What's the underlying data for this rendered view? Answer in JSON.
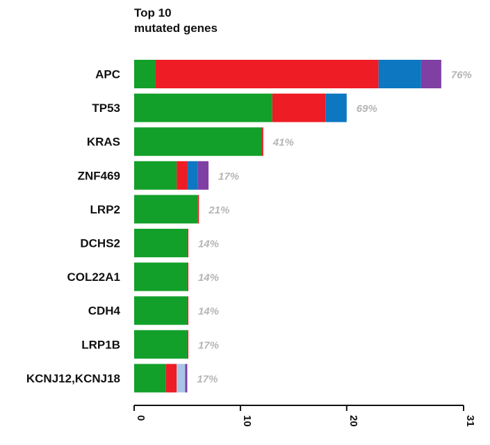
{
  "chart_data": {
    "type": "bar",
    "orientation": "horizontal",
    "stacked": true,
    "title": [
      "Top 10",
      "mutated genes"
    ],
    "categories": [
      "APC",
      "TP53",
      "KRAS",
      "ZNF469",
      "LRP2",
      "DCHS2",
      "COL22A1",
      "CDH4",
      "LRP1B",
      "KCNJ12,KCNJ18"
    ],
    "percent_labels": [
      "76%",
      "69%",
      "41%",
      "17%",
      "21%",
      "14%",
      "14%",
      "14%",
      "17%",
      "17%"
    ],
    "series": [
      {
        "color": "#12a02a",
        "values": [
          2,
          13,
          12,
          4,
          6,
          5,
          5,
          5,
          5,
          3
        ]
      },
      {
        "color": "#ee1c24",
        "values": [
          21,
          5,
          0.15,
          1,
          0.1,
          0.1,
          0.1,
          0.1,
          0.1,
          1
        ]
      },
      {
        "color": "#0d77c2",
        "values": [
          4,
          2,
          0,
          1,
          0,
          0,
          0,
          0,
          0,
          0
        ]
      },
      {
        "color": "#a7c6e6",
        "values": [
          0,
          0,
          0,
          0,
          0,
          0,
          0,
          0,
          0,
          0.8
        ]
      },
      {
        "color": "#7f3fa3",
        "values": [
          1.9,
          0,
          0,
          1,
          0,
          0,
          0,
          0,
          0,
          0.2
        ]
      }
    ],
    "xlim": [
      0,
      31
    ],
    "xticks": [
      0,
      10,
      20,
      31
    ],
    "legend": "none",
    "grid": false
  }
}
